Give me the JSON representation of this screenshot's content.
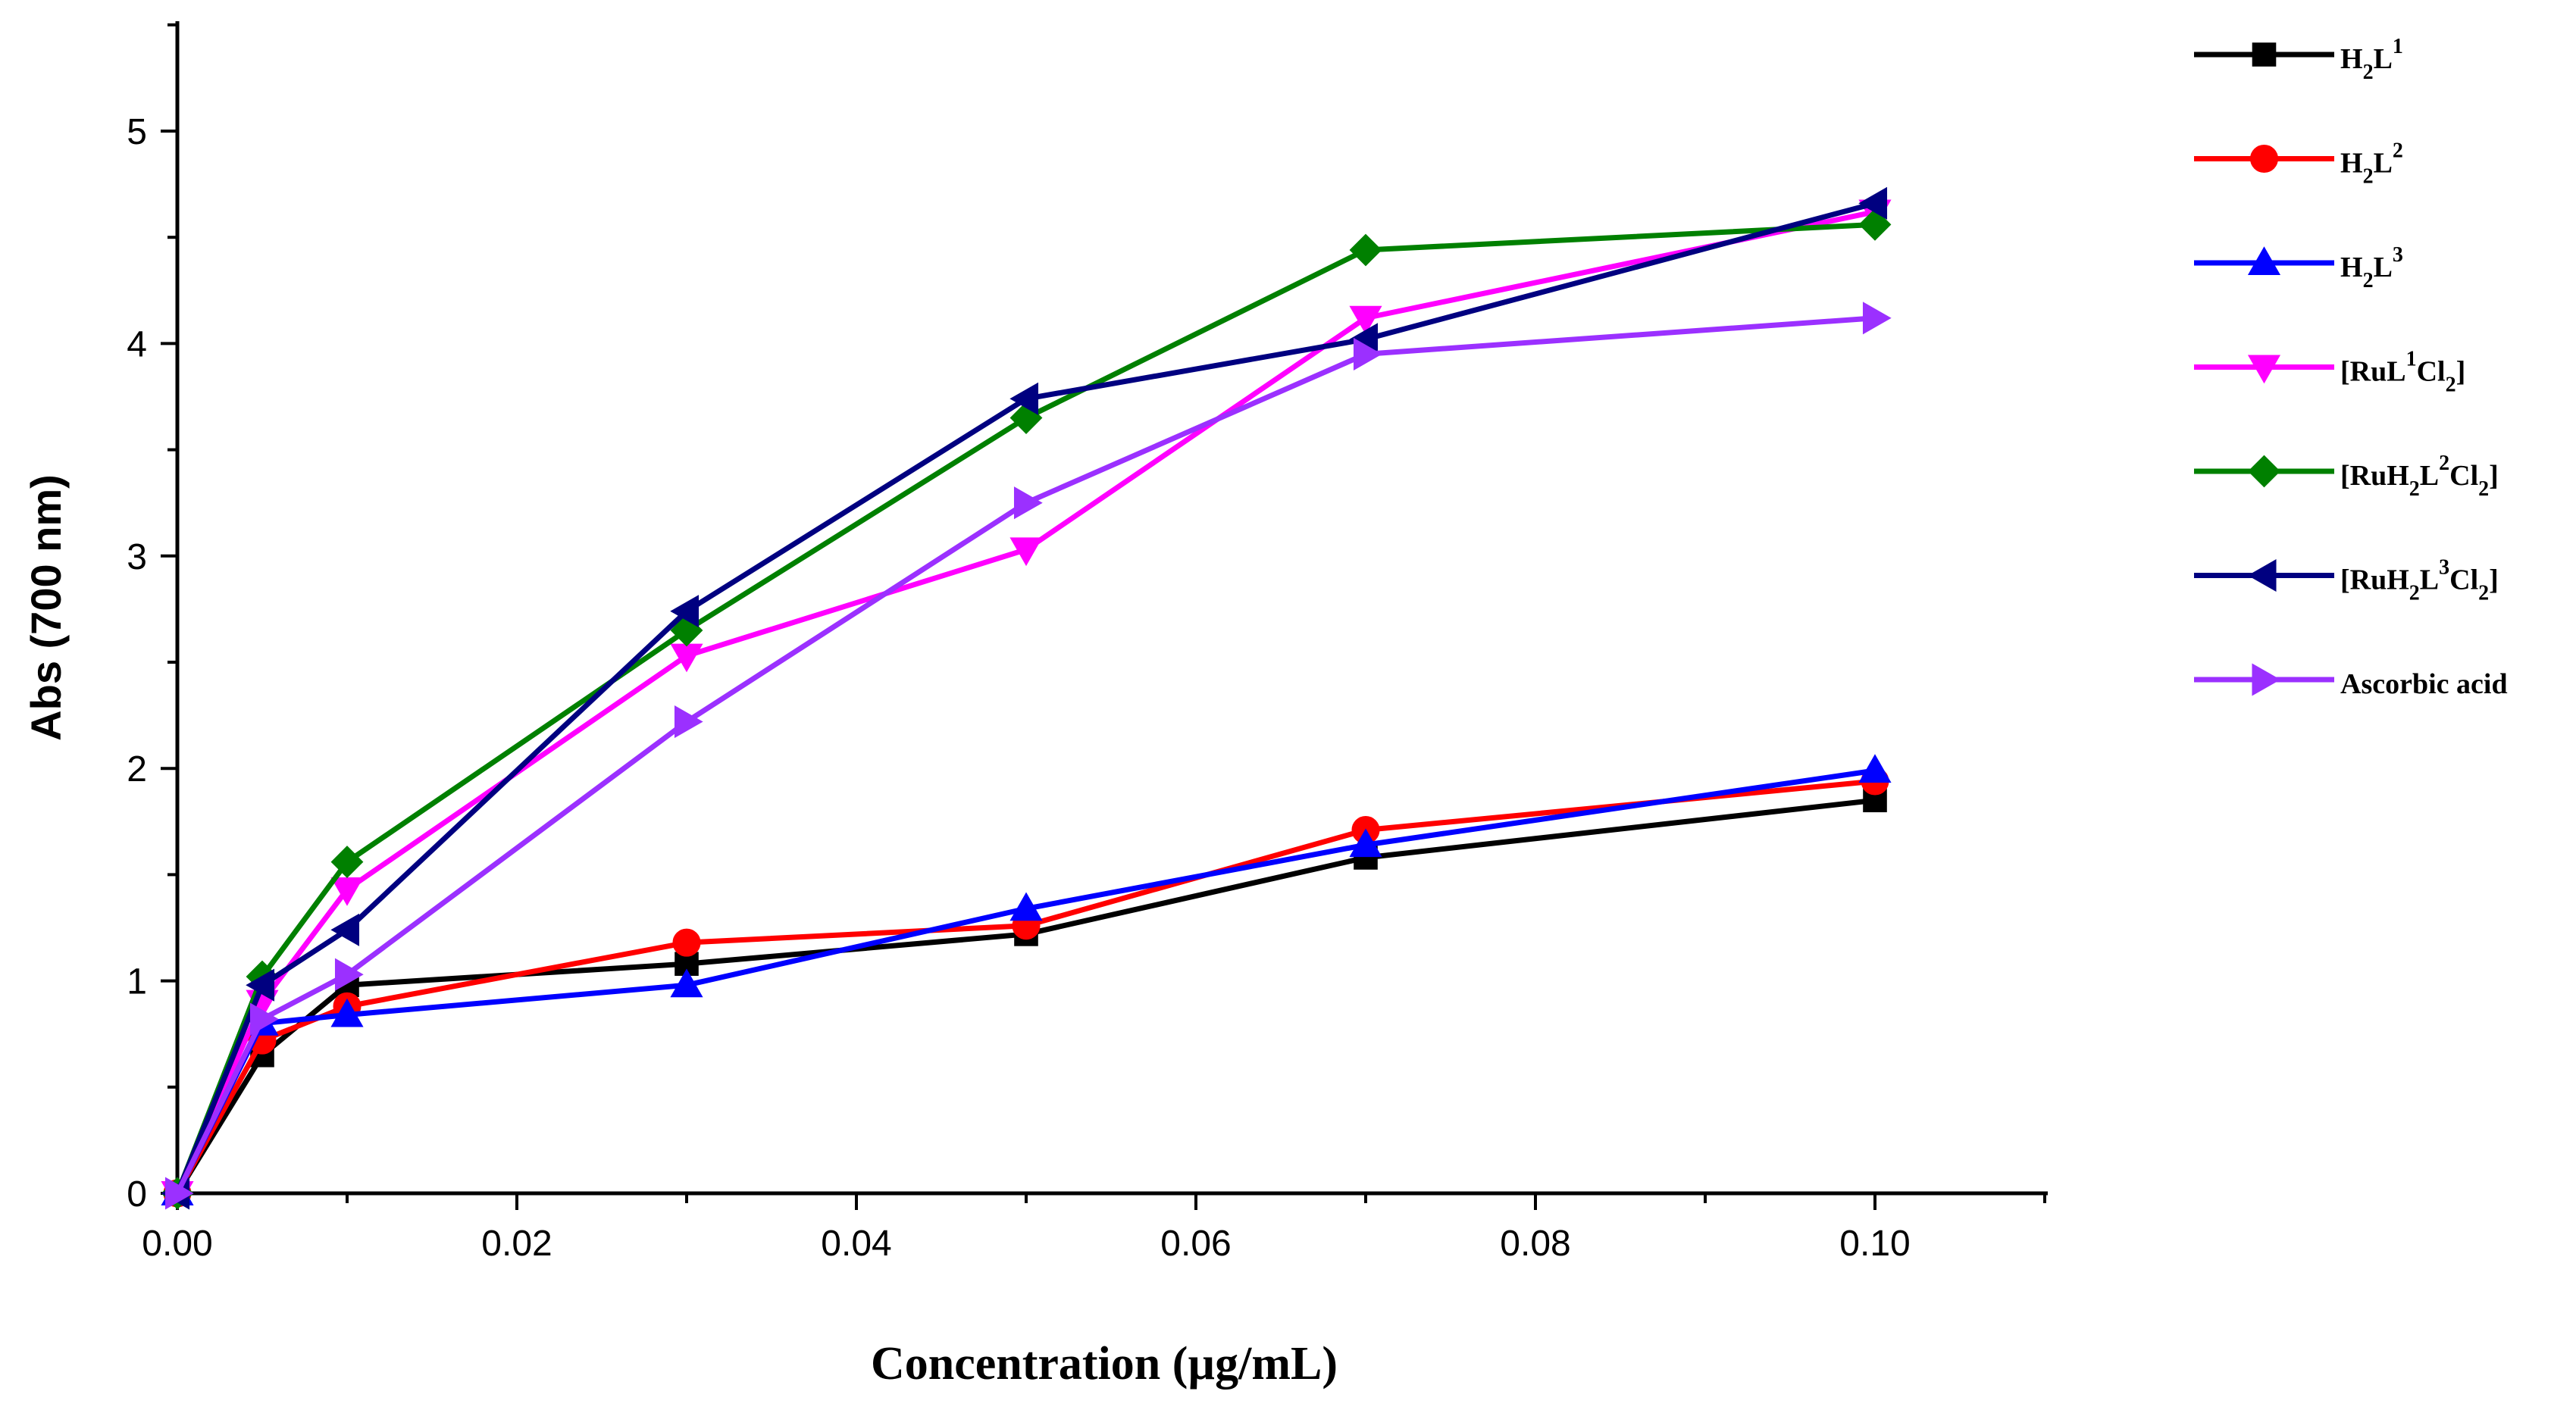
{
  "chart_data": {
    "type": "line",
    "xlabel": "Concentration (µg/mL)",
    "ylabel": "Abs (700 nm)",
    "xlim": [
      0,
      0.11
    ],
    "ylim": [
      0,
      5.5
    ],
    "x_ticks": [
      "0.00",
      "0.02",
      "0.04",
      "0.06",
      "0.08",
      "0.10"
    ],
    "y_ticks": [
      "0",
      "1",
      "2",
      "3",
      "4",
      "5"
    ],
    "x": [
      0,
      0.005,
      0.01,
      0.03,
      0.05,
      0.07,
      0.1
    ],
    "legend_position": "right",
    "grid": false,
    "series": [
      {
        "name": "H2L1",
        "legend": {
          "parts": [
            [
              "H",
              ""
            ],
            [
              "2",
              "sub"
            ],
            [
              "L",
              ""
            ],
            [
              "1",
              "sup"
            ]
          ]
        },
        "color": "#000000",
        "marker": "square",
        "values": [
          0,
          0.65,
          0.98,
          1.08,
          1.22,
          1.58,
          1.85
        ]
      },
      {
        "name": "H2L2",
        "legend": {
          "parts": [
            [
              "H",
              ""
            ],
            [
              "2",
              "sub"
            ],
            [
              "L",
              ""
            ],
            [
              "2",
              "sup"
            ]
          ]
        },
        "color": "#ff0000",
        "marker": "circle",
        "values": [
          0,
          0.72,
          0.88,
          1.18,
          1.26,
          1.71,
          1.94
        ]
      },
      {
        "name": "H2L3",
        "legend": {
          "parts": [
            [
              "H",
              ""
            ],
            [
              "2",
              "sub"
            ],
            [
              "L",
              ""
            ],
            [
              "3",
              "sup"
            ]
          ]
        },
        "color": "#0000ff",
        "marker": "triangle-up",
        "values": [
          0,
          0.8,
          0.84,
          0.98,
          1.34,
          1.64,
          1.99
        ]
      },
      {
        "name": "[RuL1Cl2]",
        "legend": {
          "parts": [
            [
              "[RuL",
              ""
            ],
            [
              "1",
              "sup"
            ],
            [
              "Cl",
              ""
            ],
            [
              "2",
              "sub"
            ],
            [
              "]",
              ""
            ]
          ]
        },
        "color": "#ff00ff",
        "marker": "triangle-down",
        "values": [
          0,
          0.9,
          1.43,
          2.53,
          3.03,
          4.12,
          4.62
        ]
      },
      {
        "name": "[RuH2L2Cl2]",
        "legend": {
          "parts": [
            [
              "[RuH",
              ""
            ],
            [
              "2",
              "sub"
            ],
            [
              "L",
              ""
            ],
            [
              "2",
              "sup"
            ],
            [
              "Cl",
              ""
            ],
            [
              "2",
              "sub"
            ],
            [
              "]",
              ""
            ]
          ]
        },
        "color": "#008000",
        "marker": "diamond",
        "values": [
          0,
          1.02,
          1.56,
          2.65,
          3.65,
          4.44,
          4.56
        ]
      },
      {
        "name": "[RuH2L3Cl2]",
        "legend": {
          "parts": [
            [
              "[RuH",
              ""
            ],
            [
              "2",
              "sub"
            ],
            [
              "L",
              ""
            ],
            [
              "3",
              "sup"
            ],
            [
              "Cl",
              ""
            ],
            [
              "2",
              "sub"
            ],
            [
              "]",
              ""
            ]
          ]
        },
        "color": "#000080",
        "marker": "triangle-left",
        "values": [
          0,
          0.98,
          1.24,
          2.74,
          3.74,
          4.02,
          4.66
        ]
      },
      {
        "name": "Ascorbic acid",
        "legend": {
          "parts": [
            [
              "Ascorbic acid",
              ""
            ]
          ]
        },
        "color": "#9b30ff",
        "marker": "triangle-right",
        "values": [
          0,
          0.82,
          1.03,
          2.22,
          3.25,
          3.95,
          4.12
        ]
      }
    ]
  }
}
